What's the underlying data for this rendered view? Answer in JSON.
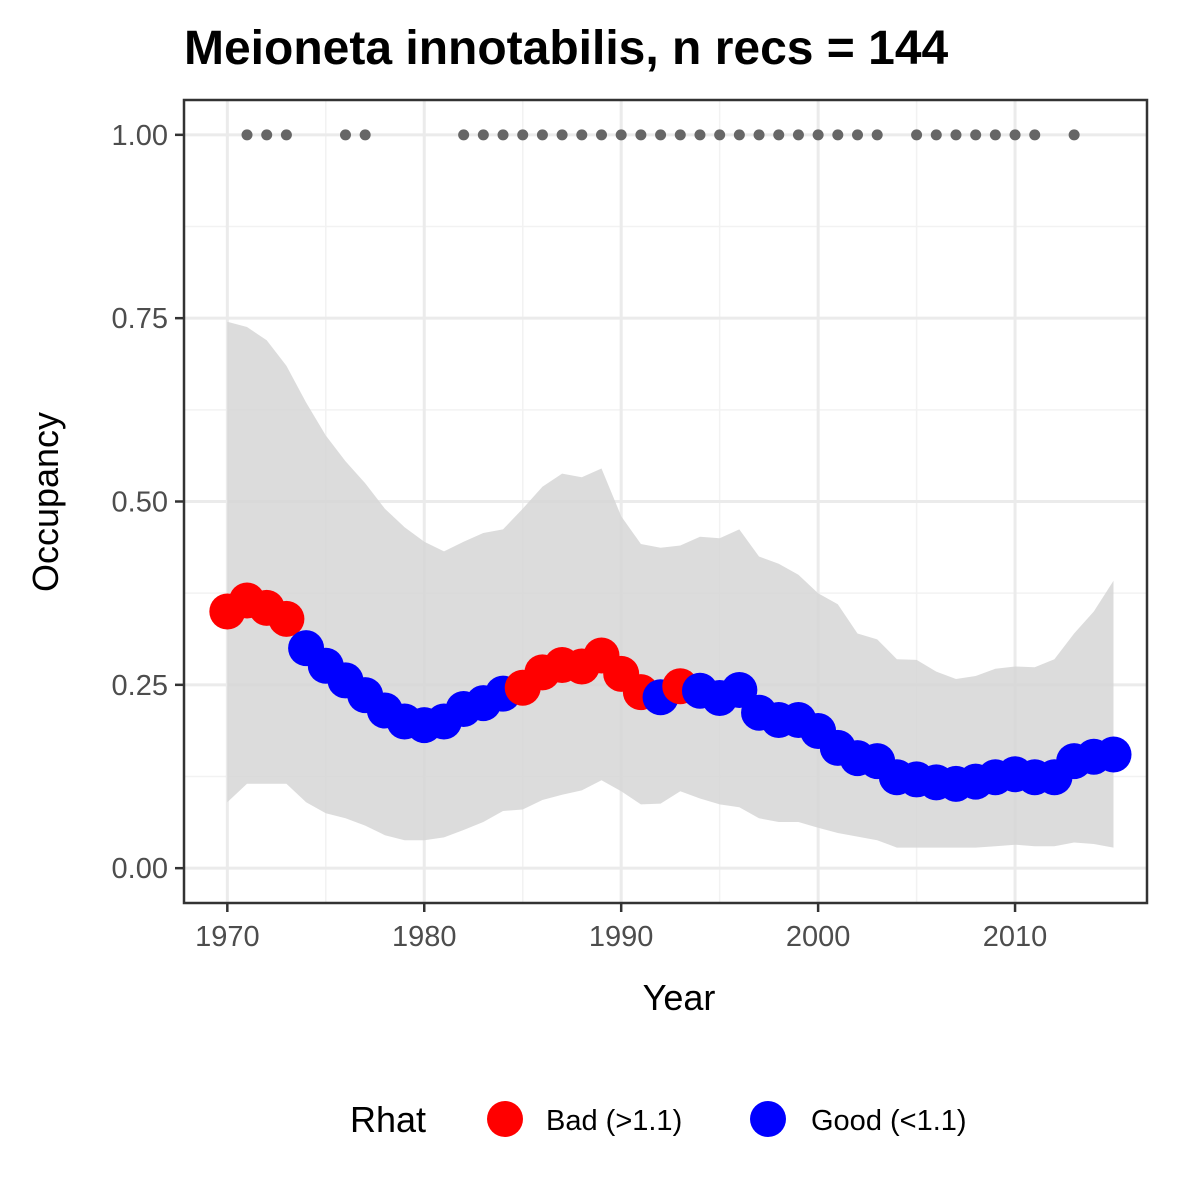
{
  "chart_data": {
    "type": "line",
    "title": "Meioneta innotabilis, n recs = 144",
    "xlabel": "Year",
    "ylabel": "Occupancy",
    "xlim": [
      1967.8,
      2016.7
    ],
    "ylim": [
      -0.0475,
      1.0475
    ],
    "x_ticks": [
      1970,
      1980,
      1990,
      2000,
      2010
    ],
    "x_tick_labels": [
      "1970",
      "1980",
      "1990",
      "2000",
      "2010"
    ],
    "y_ticks": [
      0,
      0.25,
      0.5,
      0.75,
      1.0
    ],
    "y_tick_labels": [
      "0.00",
      "0.25",
      "0.50",
      "0.75",
      "1.00"
    ],
    "grid": true,
    "legend": {
      "title": "Rhat",
      "position": "bottom",
      "entries": [
        {
          "label": "Bad (>1.1)",
          "color": "#ff0000"
        },
        {
          "label": "Good (<1.1)",
          "color": "#0000ff"
        }
      ]
    },
    "series": [
      {
        "kind": "ribbon",
        "color": "#d6d6d6",
        "x": [
          1970,
          1971,
          1972,
          1973,
          1974,
          1975,
          1976,
          1977,
          1978,
          1979,
          1980,
          1981,
          1982,
          1983,
          1984,
          1985,
          1986,
          1987,
          1988,
          1989,
          1990,
          1991,
          1992,
          1993,
          1994,
          1995,
          1996,
          1997,
          1998,
          1999,
          2000,
          2001,
          2002,
          2003,
          2004,
          2005,
          2006,
          2007,
          2008,
          2009,
          2010,
          2011,
          2012,
          2013,
          2014,
          2015
        ],
        "lower": [
          0.09,
          0.115,
          0.115,
          0.115,
          0.09,
          0.075,
          0.068,
          0.058,
          0.045,
          0.038,
          0.038,
          0.042,
          0.052,
          0.063,
          0.078,
          0.08,
          0.093,
          0.1,
          0.106,
          0.12,
          0.105,
          0.087,
          0.088,
          0.105,
          0.095,
          0.087,
          0.083,
          0.068,
          0.063,
          0.063,
          0.055,
          0.048,
          0.043,
          0.038,
          0.028,
          0.028,
          0.028,
          0.028,
          0.028,
          0.03,
          0.032,
          0.03,
          0.03,
          0.035,
          0.033,
          0.028
        ],
        "upper": [
          0.745,
          0.738,
          0.72,
          0.685,
          0.635,
          0.59,
          0.555,
          0.525,
          0.49,
          0.465,
          0.445,
          0.432,
          0.445,
          0.457,
          0.462,
          0.49,
          0.52,
          0.538,
          0.533,
          0.545,
          0.48,
          0.442,
          0.437,
          0.44,
          0.452,
          0.45,
          0.462,
          0.425,
          0.415,
          0.4,
          0.375,
          0.36,
          0.32,
          0.312,
          0.285,
          0.284,
          0.268,
          0.258,
          0.262,
          0.272,
          0.275,
          0.274,
          0.285,
          0.32,
          0.35,
          0.392
        ]
      },
      {
        "kind": "points",
        "name": "Occupancy",
        "x": [
          1970,
          1971,
          1972,
          1973,
          1974,
          1975,
          1976,
          1977,
          1978,
          1979,
          1980,
          1981,
          1982,
          1983,
          1984,
          1985,
          1986,
          1987,
          1988,
          1989,
          1990,
          1991,
          1992,
          1993,
          1994,
          1995,
          1996,
          1997,
          1998,
          1999,
          2000,
          2001,
          2002,
          2003,
          2004,
          2005,
          2006,
          2007,
          2008,
          2009,
          2010,
          2011,
          2012,
          2013,
          2014,
          2015
        ],
        "y": [
          0.35,
          0.365,
          0.355,
          0.34,
          0.3,
          0.276,
          0.256,
          0.236,
          0.215,
          0.2,
          0.195,
          0.2,
          0.217,
          0.225,
          0.238,
          0.246,
          0.267,
          0.277,
          0.275,
          0.29,
          0.265,
          0.24,
          0.233,
          0.248,
          0.242,
          0.232,
          0.243,
          0.212,
          0.202,
          0.202,
          0.187,
          0.164,
          0.15,
          0.146,
          0.124,
          0.121,
          0.117,
          0.115,
          0.118,
          0.124,
          0.128,
          0.124,
          0.124,
          0.146,
          0.152,
          0.155
        ],
        "rhat": [
          "Bad",
          "Bad",
          "Bad",
          "Bad",
          "Good",
          "Good",
          "Good",
          "Good",
          "Good",
          "Good",
          "Good",
          "Good",
          "Good",
          "Good",
          "Good",
          "Bad",
          "Bad",
          "Bad",
          "Bad",
          "Bad",
          "Bad",
          "Bad",
          "Good",
          "Bad",
          "Good",
          "Good",
          "Good",
          "Good",
          "Good",
          "Good",
          "Good",
          "Good",
          "Good",
          "Good",
          "Good",
          "Good",
          "Good",
          "Good",
          "Good",
          "Good",
          "Good",
          "Good",
          "Good",
          "Good",
          "Good",
          "Good"
        ]
      },
      {
        "kind": "record-years",
        "color": "#666666",
        "y": 1.0,
        "x": [
          1971,
          1972,
          1973,
          1976,
          1977,
          1982,
          1983,
          1984,
          1985,
          1986,
          1987,
          1988,
          1989,
          1990,
          1991,
          1992,
          1993,
          1994,
          1995,
          1996,
          1997,
          1998,
          1999,
          2000,
          2001,
          2002,
          2003,
          2005,
          2006,
          2007,
          2008,
          2009,
          2010,
          2011,
          2013
        ]
      }
    ]
  }
}
